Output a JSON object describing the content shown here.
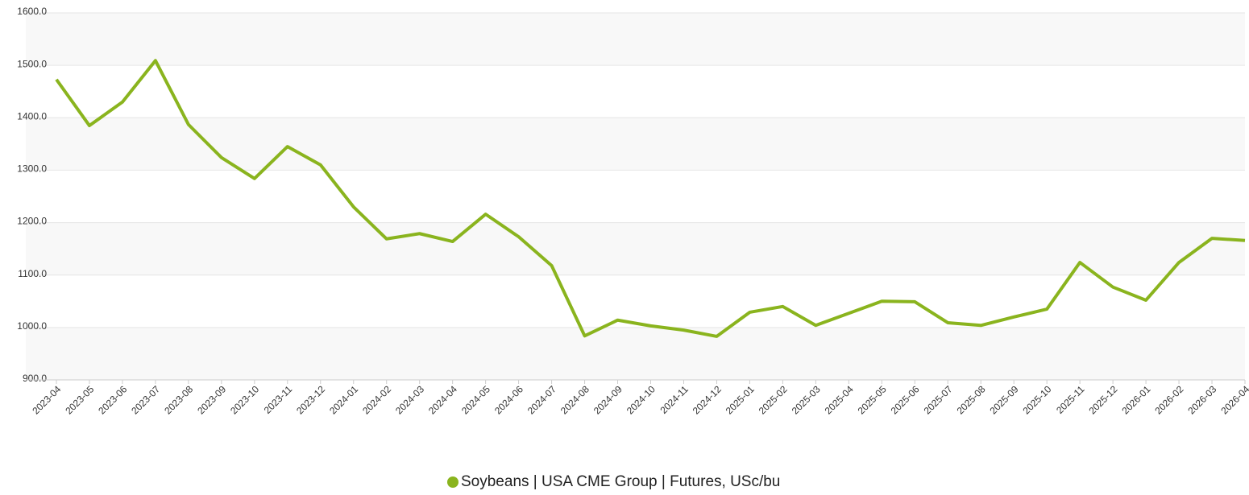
{
  "chart_data": {
    "type": "line",
    "categories": [
      "2023-04",
      "2023-05",
      "2023-06",
      "2023-07",
      "2023-08",
      "2023-09",
      "2023-10",
      "2023-11",
      "2023-12",
      "2024-01",
      "2024-02",
      "2024-03",
      "2024-04",
      "2024-05",
      "2024-06",
      "2024-07",
      "2024-08",
      "2024-09",
      "2024-10",
      "2024-11",
      "2024-12",
      "2025-01",
      "2025-02",
      "2025-03",
      "2025-04",
      "2025-05",
      "2025-06",
      "2025-07",
      "2025-08",
      "2025-09",
      "2025-10",
      "2025-11",
      "2025-12",
      "2026-01",
      "2026-02",
      "2026-03",
      "2026-04"
    ],
    "series": [
      {
        "name": "Soybeans | USA CME Group | Futures, USc/bu",
        "color": "#8ab41e",
        "values": [
          1473,
          1385,
          1430,
          1509,
          1387,
          1324,
          1284,
          1345,
          1310,
          1230,
          1169,
          1179,
          1164,
          1216,
          1173,
          1118,
          984,
          1014,
          1003,
          995,
          983,
          1029,
          1040,
          1004,
          1027,
          1050,
          1049,
          1009,
          1004,
          1020,
          1035,
          1124,
          1077,
          1052,
          1124,
          1170,
          1166
        ]
      }
    ],
    "ylim": [
      900,
      1600
    ],
    "yticks": [
      {
        "value": 900,
        "label": "900.0"
      },
      {
        "value": 1000,
        "label": "1000.0"
      },
      {
        "value": 1100,
        "label": "1100.0"
      },
      {
        "value": 1200,
        "label": "1200.0"
      },
      {
        "value": 1300,
        "label": "1300.0"
      },
      {
        "value": 1400,
        "label": "1400.0"
      },
      {
        "value": 1500,
        "label": "1500.0"
      },
      {
        "value": 1600,
        "label": "1600.0"
      }
    ],
    "grid": true,
    "legend": "bottom"
  }
}
